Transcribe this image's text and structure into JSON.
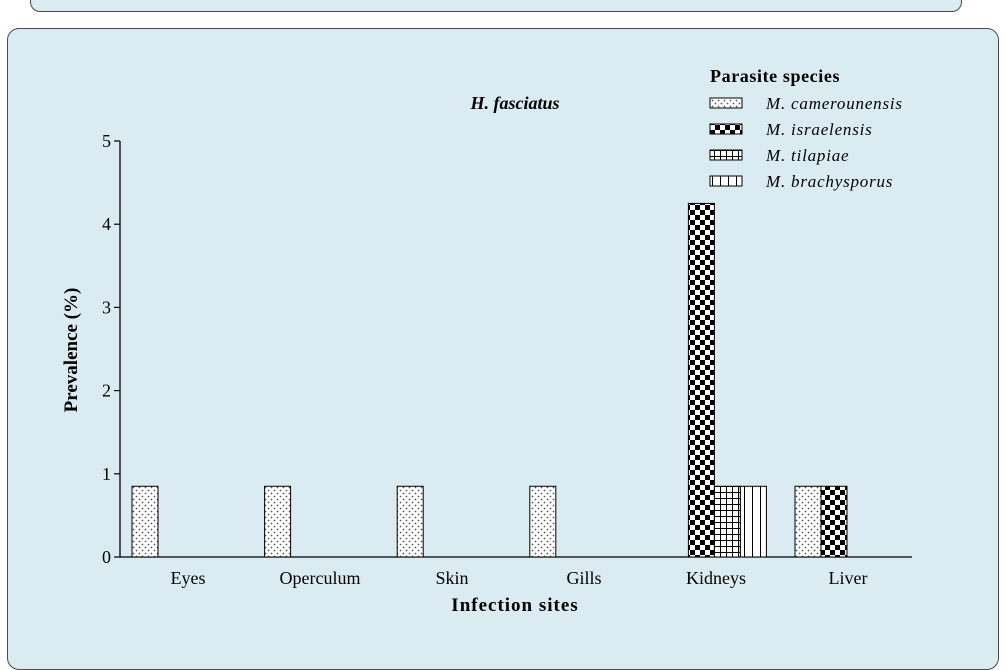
{
  "chart_data": {
    "type": "bar",
    "title": "H. fasciatus",
    "xlabel": "Infection sites",
    "ylabel": "Prevalence (%)",
    "ylim": [
      0,
      5
    ],
    "yticks": [
      "0",
      "1",
      "2",
      "3",
      "4",
      "5"
    ],
    "categories": [
      "Eyes",
      "Operculum",
      "Skin",
      "Gills",
      "Kidneys",
      "Liver"
    ],
    "legend_title": "Parasite species",
    "legend_position": "top-right",
    "grid": false,
    "series": [
      {
        "name": "M. camerounensis",
        "pattern": "dots",
        "values": [
          0.85,
          0.85,
          0.85,
          0.85,
          0,
          0.85
        ]
      },
      {
        "name": "M. israelensis",
        "pattern": "checker",
        "values": [
          0,
          0,
          0,
          0,
          4.25,
          0.85
        ]
      },
      {
        "name": "M. tilapiae",
        "pattern": "grid",
        "values": [
          0,
          0,
          0,
          0,
          0.85,
          0
        ]
      },
      {
        "name": "M. brachysporus",
        "pattern": "vlines",
        "values": [
          0,
          0,
          0,
          0,
          0.85,
          0
        ]
      }
    ]
  }
}
